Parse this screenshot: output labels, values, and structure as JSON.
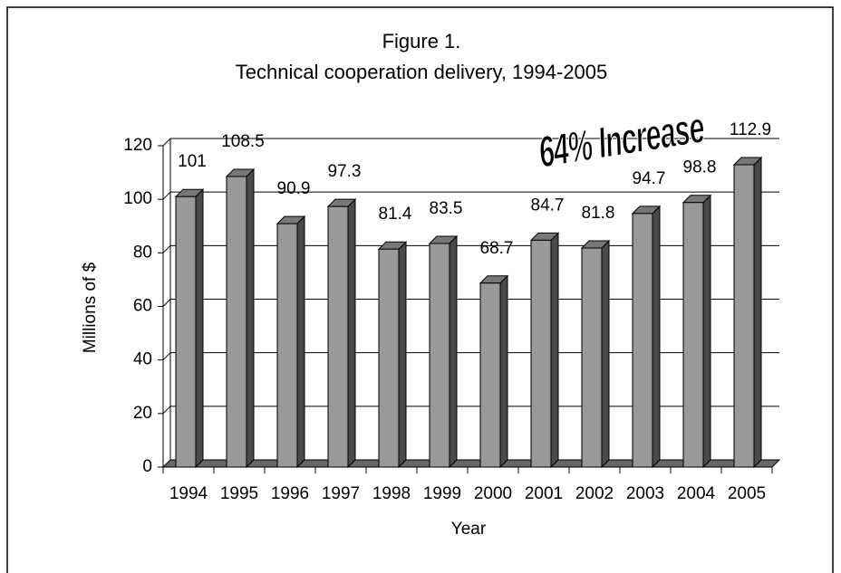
{
  "chart_data": {
    "type": "bar3d",
    "title": "Figure 1.",
    "subtitle": "Technical cooperation delivery, 1994-2005",
    "x_label": "Year",
    "y_label": "Millions of $",
    "annotation": "64% Increase",
    "categories": [
      "1994",
      "1995",
      "1996",
      "1997",
      "1998",
      "1999",
      "2000",
      "2001",
      "2002",
      "2003",
      "2004",
      "2005"
    ],
    "values": [
      101,
      108.5,
      90.9,
      97.3,
      81.4,
      83.5,
      68.7,
      84.7,
      81.8,
      94.7,
      98.8,
      112.9
    ],
    "color": "#999999",
    "ylim": [
      0,
      120
    ],
    "yticks": [
      0,
      20,
      40,
      60,
      80,
      100,
      120
    ],
    "grid": true
  }
}
